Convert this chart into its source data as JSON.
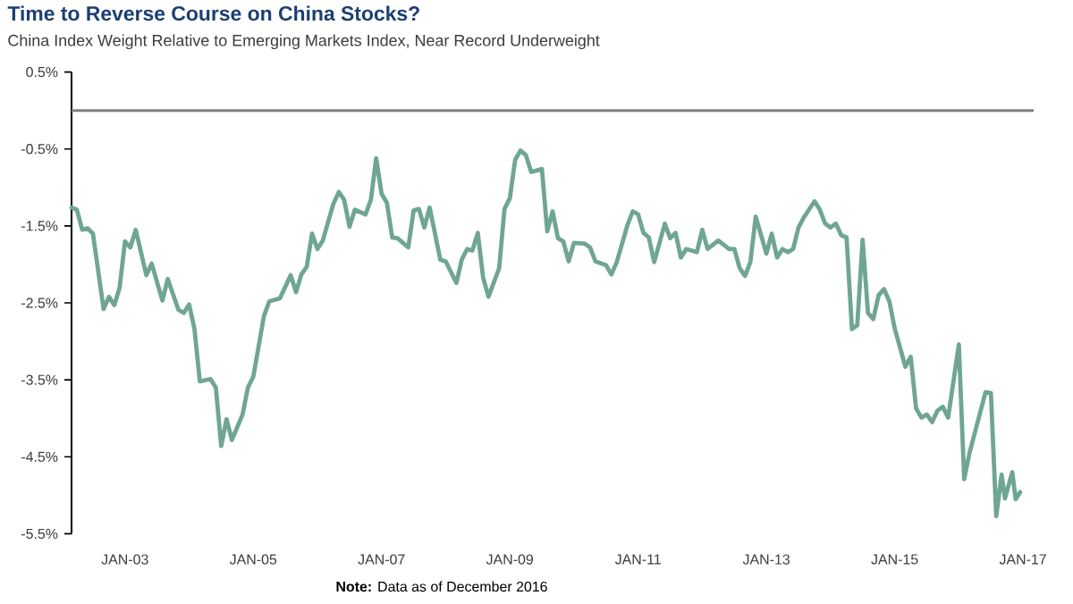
{
  "chart_data": {
    "type": "line",
    "title": "Time to Reverse Course on China Stocks?",
    "subtitle": "China Index Weight Relative to Emerging Markets Index, Near Record Underweight",
    "x": [
      "2002-03",
      "2002-04",
      "2002-05",
      "2002-06",
      "2002-07",
      "2002-09",
      "2002-10",
      "2002-11",
      "2002-12",
      "2003-01",
      "2003-02",
      "2003-03",
      "2003-05",
      "2003-06",
      "2003-08",
      "2003-09",
      "2003-11",
      "2003-12",
      "2004-01",
      "2004-02",
      "2004-03",
      "2004-05",
      "2004-06",
      "2004-07",
      "2004-08",
      "2004-09",
      "2004-11",
      "2004-12",
      "2005-01",
      "2005-03",
      "2005-04",
      "2005-06",
      "2005-08",
      "2005-09",
      "2005-10",
      "2005-11",
      "2005-12",
      "2006-01",
      "2006-02",
      "2006-04",
      "2006-05",
      "2006-06",
      "2006-07",
      "2006-08",
      "2006-10",
      "2006-11",
      "2006-12",
      "2007-01",
      "2007-02",
      "2007-03",
      "2007-04",
      "2007-06",
      "2007-07",
      "2007-08",
      "2007-09",
      "2007-10",
      "2007-12",
      "2008-01",
      "2008-03",
      "2008-04",
      "2008-05",
      "2008-06",
      "2008-07",
      "2008-08",
      "2008-09",
      "2008-11",
      "2008-12",
      "2009-01",
      "2009-02",
      "2009-03",
      "2009-04",
      "2009-05",
      "2009-07",
      "2009-08",
      "2009-09",
      "2009-10",
      "2009-11",
      "2009-12",
      "2010-01",
      "2010-03",
      "2010-04",
      "2010-05",
      "2010-07",
      "2010-08",
      "2010-09",
      "2010-11",
      "2010-12",
      "2011-01",
      "2011-02",
      "2011-03",
      "2011-04",
      "2011-06",
      "2011-07",
      "2011-08",
      "2011-09",
      "2011-10",
      "2011-12",
      "2012-01",
      "2012-02",
      "2012-04",
      "2012-06",
      "2012-07",
      "2012-08",
      "2012-09",
      "2012-10",
      "2012-11",
      "2013-01",
      "2013-02",
      "2013-03",
      "2013-04",
      "2013-05",
      "2013-06",
      "2013-07",
      "2013-08",
      "2013-10",
      "2013-11",
      "2013-12",
      "2014-01",
      "2014-02",
      "2014-03",
      "2014-04",
      "2014-05",
      "2014-06",
      "2014-07",
      "2014-08",
      "2014-09",
      "2014-10",
      "2014-11",
      "2014-12",
      "2015-01",
      "2015-03",
      "2015-04",
      "2015-05",
      "2015-06",
      "2015-07",
      "2015-08",
      "2015-09",
      "2015-10",
      "2015-11",
      "2016-01",
      "2016-02",
      "2016-03",
      "2016-06",
      "2016-07",
      "2016-08",
      "2016-09-01",
      "2016-09-20",
      "2016-11-01",
      "2016-11-20",
      "2016-12-15"
    ],
    "values": [
      -1.26,
      -1.29,
      -1.55,
      -1.53,
      -1.6,
      -2.58,
      -2.42,
      -2.53,
      -2.3,
      -1.7,
      -1.78,
      -1.55,
      -2.14,
      -1.99,
      -2.47,
      -2.19,
      -2.59,
      -2.63,
      -2.52,
      -2.84,
      -3.52,
      -3.49,
      -3.6,
      -4.36,
      -4.01,
      -4.28,
      -3.95,
      -3.6,
      -3.46,
      -2.67,
      -2.48,
      -2.44,
      -2.14,
      -2.36,
      -2.13,
      -2.03,
      -1.6,
      -1.8,
      -1.69,
      -1.21,
      -1.06,
      -1.16,
      -1.51,
      -1.29,
      -1.35,
      -1.16,
      -0.62,
      -1.08,
      -1.2,
      -1.65,
      -1.66,
      -1.78,
      -1.3,
      -1.28,
      -1.52,
      -1.26,
      -1.94,
      -1.96,
      -2.24,
      -1.94,
      -1.8,
      -1.82,
      -1.59,
      -2.17,
      -2.42,
      -2.05,
      -1.28,
      -1.14,
      -0.64,
      -0.52,
      -0.58,
      -0.8,
      -0.76,
      -1.57,
      -1.31,
      -1.66,
      -1.7,
      -1.96,
      -1.72,
      -1.73,
      -1.78,
      -1.96,
      -2.01,
      -2.13,
      -1.97,
      -1.49,
      -1.31,
      -1.35,
      -1.59,
      -1.65,
      -1.97,
      -1.47,
      -1.66,
      -1.59,
      -1.91,
      -1.8,
      -1.84,
      -1.55,
      -1.8,
      -1.69,
      -1.8,
      -1.8,
      -2.05,
      -2.15,
      -1.97,
      -1.38,
      -1.86,
      -1.6,
      -1.91,
      -1.8,
      -1.84,
      -1.8,
      -1.52,
      -1.39,
      -1.18,
      -1.29,
      -1.47,
      -1.52,
      -1.47,
      -1.62,
      -1.65,
      -2.84,
      -2.79,
      -1.68,
      -2.63,
      -2.71,
      -2.4,
      -2.32,
      -2.48,
      -2.83,
      -3.33,
      -3.2,
      -3.87,
      -3.99,
      -3.95,
      -4.05,
      -3.9,
      -3.85,
      -3.99,
      -3.04,
      -4.79,
      -4.45,
      -3.66,
      -3.67,
      -5.27,
      -4.73,
      -5.04,
      -4.7,
      -5.05,
      -4.96
    ],
    "color": "#6fa693",
    "line_style": "solid",
    "xlim": [
      "2002-03",
      "2017-03"
    ],
    "xticks": [
      {
        "value": "2003-01",
        "label": "JAN-03"
      },
      {
        "value": "2005-01",
        "label": "JAN-05"
      },
      {
        "value": "2007-01",
        "label": "JAN-07"
      },
      {
        "value": "2009-01",
        "label": "JAN-09"
      },
      {
        "value": "2011-01",
        "label": "JAN-11"
      },
      {
        "value": "2013-01",
        "label": "JAN-13"
      },
      {
        "value": "2015-01",
        "label": "JAN-15"
      },
      {
        "value": "2017-01",
        "label": "JAN-17"
      }
    ],
    "ylim": [
      -5.5,
      0.5
    ],
    "yticks": [
      {
        "value": 0.5,
        "label": "0.5%"
      },
      {
        "value": -0.5,
        "label": "-0.5%"
      },
      {
        "value": -1.5,
        "label": "-1.5%"
      },
      {
        "value": -2.5,
        "label": "-2.5%"
      },
      {
        "value": -3.5,
        "label": "-3.5%"
      },
      {
        "value": -4.5,
        "label": "-4.5%"
      },
      {
        "value": -5.5,
        "label": "-5.5%"
      }
    ],
    "ref_lines": [
      {
        "axis": "y",
        "value": 0,
        "color": "#808080"
      }
    ],
    "annotations": [
      "**Note:** Data as of December 2016"
    ]
  }
}
